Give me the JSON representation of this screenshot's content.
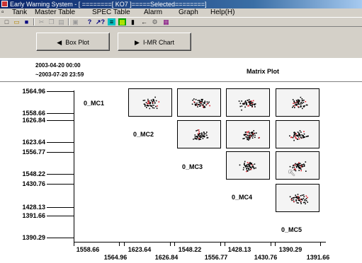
{
  "window": {
    "title": "Early Warning System - [ ========[ KO7 ]=====Selected========]"
  },
  "menu": [
    "Tank",
    "Master Table",
    "SPEC Table",
    "Alarm",
    "Graph",
    "Help(H)"
  ],
  "toolbar": {
    "icons": [
      "new-icon",
      "open-icon",
      "save-icon",
      "cut-icon",
      "copy-icon",
      "paste-icon",
      "print-icon",
      "help-icon",
      "whats-this-icon",
      "chart-icon",
      "data-icon",
      "select-icon",
      "back-icon",
      "settings-icon",
      "report-icon"
    ]
  },
  "buttons": {
    "box_plot": "Box Plot",
    "imr_chart": "I-MR Chart"
  },
  "range": {
    "start": "2003-04-20 00:00",
    "end": "~2003-07-20 23:59"
  },
  "plot_title": "Matrix Plot",
  "variables": [
    "0_MC1",
    "0_MC2",
    "0_MC3",
    "0_MC4",
    "0_MC5"
  ],
  "y_axis": [
    {
      "max": "1564.96",
      "min": "1558.66"
    },
    {
      "max": "1626.84",
      "min": "1623.64"
    },
    {
      "max": "1556.77",
      "min": "1548.22"
    },
    {
      "max": "1430.76",
      "min": "1428.13"
    },
    {
      "max": "1391.66",
      "min": "1390.29"
    }
  ],
  "x_axis_bottom_row": [
    "1558.66",
    "1623.64",
    "1548.22",
    "1428.13",
    "1390.29"
  ],
  "x_axis_top_row": [
    "1564.96",
    "1626.84",
    "1556.77",
    "1430.76",
    "1391.66"
  ],
  "colors": {
    "point": "#000000",
    "highlight": "#e0202a",
    "titlebar": "#0a246a"
  }
}
